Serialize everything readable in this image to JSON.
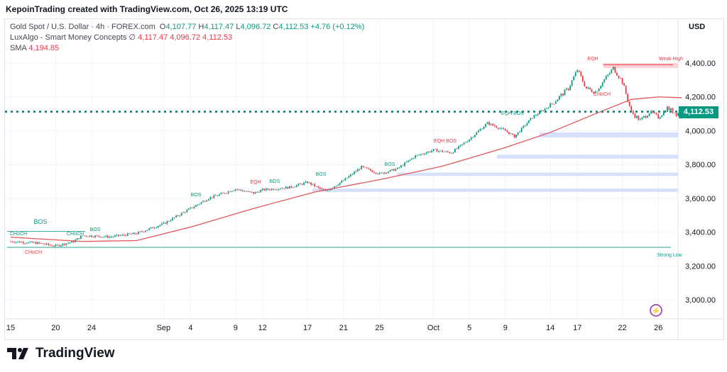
{
  "header": {
    "created": "KepoinTrading created with TradingView.com, Oct 26, 2025 13:19 UTC"
  },
  "legend": {
    "symbol": "Gold Spot / U.S. Dollar · 4h · FOREX.com",
    "o_label": "O",
    "o": "4,107.77",
    "h_label": "H",
    "h": "4,117.47",
    "l_label": "L",
    "l": "4,096.72",
    "c_label": "C",
    "c": "4,112.53",
    "change": "+4.76 (+0.12%)",
    "ind1": "LuxAlgo - Smart Money Concepts",
    "ind1_icon": "∅",
    "ind1_v1": "4,117.47",
    "ind1_v2": "4,096.72",
    "ind1_v3": "4,112.53",
    "sma_label": "SMA",
    "sma_value": "4,194.85"
  },
  "axis": {
    "currency": "USD",
    "last_price": "4,112.53"
  },
  "colors": {
    "up": "#089981",
    "down": "#f23645",
    "sma": "#e0575b",
    "zone_blue": "#d6e0fb",
    "zone_red": "#fbd5d5"
  },
  "brand": {
    "logo_text": "TradingView"
  },
  "chart_data": {
    "type": "candlestick",
    "title": "Gold Spot / U.S. Dollar · 4h · FOREX.com",
    "ylim": [
      2900,
      4480
    ],
    "y_ticks": [
      {
        "v": 4400,
        "label": "4,400.00"
      },
      {
        "v": 4200,
        "label": "4,200.00"
      },
      {
        "v": 4000,
        "label": "4,000.00"
      },
      {
        "v": 3800,
        "label": "3,800.00"
      },
      {
        "v": 3600,
        "label": "3,600.00"
      },
      {
        "v": 3400,
        "label": "3,400.00"
      },
      {
        "v": 3200,
        "label": "3,200.00"
      },
      {
        "v": 3000,
        "label": "3,000.00"
      }
    ],
    "x_ticks": [
      {
        "d": 0,
        "label": "15"
      },
      {
        "d": 5,
        "label": "20"
      },
      {
        "d": 9,
        "label": "24"
      },
      {
        "d": 17,
        "label": "Sep"
      },
      {
        "d": 20,
        "label": "4"
      },
      {
        "d": 25,
        "label": "9"
      },
      {
        "d": 28,
        "label": "12"
      },
      {
        "d": 33,
        "label": "17"
      },
      {
        "d": 37,
        "label": "21"
      },
      {
        "d": 41,
        "label": "25"
      },
      {
        "d": 47,
        "label": "Oct"
      },
      {
        "d": 51,
        "label": "5"
      },
      {
        "d": 55,
        "label": "9"
      },
      {
        "d": 60,
        "label": "14"
      },
      {
        "d": 63,
        "label": "17"
      },
      {
        "d": 68,
        "label": "22"
      },
      {
        "d": 72,
        "label": "26"
      }
    ],
    "price_path": [
      [
        0,
        3345
      ],
      [
        3,
        3335
      ],
      [
        5,
        3318
      ],
      [
        7,
        3345
      ],
      [
        8,
        3380
      ],
      [
        11,
        3372
      ],
      [
        14,
        3392
      ],
      [
        17,
        3450
      ],
      [
        20,
        3540
      ],
      [
        22,
        3600
      ],
      [
        25,
        3655
      ],
      [
        27,
        3630
      ],
      [
        28,
        3650
      ],
      [
        31,
        3665
      ],
      [
        33,
        3695
      ],
      [
        35,
        3640
      ],
      [
        37,
        3705
      ],
      [
        39,
        3785
      ],
      [
        41,
        3745
      ],
      [
        43,
        3775
      ],
      [
        45,
        3850
      ],
      [
        47,
        3885
      ],
      [
        49,
        3870
      ],
      [
        51,
        3950
      ],
      [
        53,
        4045
      ],
      [
        55,
        4000
      ],
      [
        56,
        3965
      ],
      [
        58,
        4080
      ],
      [
        60,
        4150
      ],
      [
        62,
        4250
      ],
      [
        63,
        4360
      ],
      [
        64,
        4250
      ],
      [
        65,
        4230
      ],
      [
        66,
        4300
      ],
      [
        67,
        4370
      ],
      [
        68,
        4290
      ],
      [
        69,
        4110
      ],
      [
        70,
        4060
      ],
      [
        71,
        4110
      ],
      [
        72,
        4080
      ],
      [
        73,
        4135
      ],
      [
        74,
        4100
      ],
      [
        74.6,
        4112.53
      ]
    ],
    "sma": [
      [
        0,
        3370
      ],
      [
        8,
        3345
      ],
      [
        14,
        3350
      ],
      [
        20,
        3430
      ],
      [
        27,
        3540
      ],
      [
        34,
        3640
      ],
      [
        41,
        3710
      ],
      [
        48,
        3790
      ],
      [
        55,
        3900
      ],
      [
        60,
        3990
      ],
      [
        65,
        4100
      ],
      [
        69,
        4185
      ],
      [
        72,
        4200
      ],
      [
        74.6,
        4195
      ]
    ],
    "last_price": 4112.53,
    "strong_low": 3310,
    "zones": [
      {
        "type": "supply",
        "from": 4370,
        "to": 4400
      },
      {
        "type": "demand",
        "from": 3960,
        "to": 3990
      },
      {
        "type": "demand",
        "from": 3835,
        "to": 3858
      },
      {
        "type": "demand",
        "from": 3732,
        "to": 3752
      },
      {
        "type": "demand",
        "from": 3638,
        "to": 3658
      }
    ],
    "labels": [
      "BOS",
      "CHoCH",
      "CHoCH",
      "CHoCH",
      "BOS",
      "BOS",
      "EQH",
      "BOS",
      "BOS",
      "BOS",
      "EQH BOS",
      "EQH BOS",
      "EQH",
      "CHoCH",
      "Weak High",
      "Strong Low"
    ]
  }
}
